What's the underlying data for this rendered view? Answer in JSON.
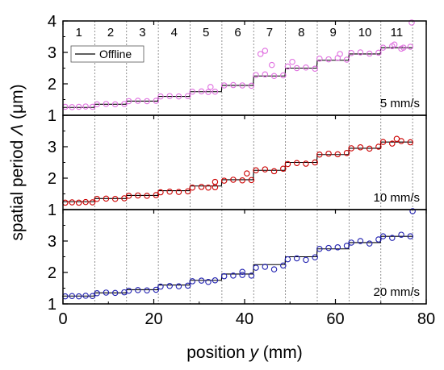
{
  "chart_data": {
    "type": "line+scatter",
    "xlabel_prefix": "position ",
    "xlabel_var": "y",
    "xlabel_suffix": " (mm)",
    "ylabel_prefix": "spatial period ",
    "ylabel_var": "Λ",
    "ylabel_suffix": " (μm)",
    "xlim": [
      0,
      80
    ],
    "ylim": [
      1,
      4
    ],
    "x_ticks": [
      0,
      20,
      40,
      60,
      80
    ],
    "y_ticks_top": [
      1,
      2,
      3,
      4
    ],
    "y_ticks_other": [
      1,
      2,
      3
    ],
    "grid": false,
    "region_boundaries": [
      7,
      14,
      21,
      28,
      35,
      42,
      49,
      56,
      63,
      70,
      77
    ],
    "region_labels": [
      "1",
      "2",
      "3",
      "4",
      "5",
      "6",
      "7",
      "8",
      "9",
      "10",
      "11"
    ],
    "offline_series": {
      "name": "Offline",
      "color": "#000000",
      "x": [
        0,
        6.9,
        7,
        13.9,
        14,
        20.9,
        21,
        27.9,
        28,
        34.9,
        35,
        41.9,
        42,
        48.9,
        49,
        55.9,
        56,
        62.9,
        63,
        69.9,
        70,
        77
      ],
      "y": [
        1.25,
        1.25,
        1.35,
        1.35,
        1.45,
        1.45,
        1.6,
        1.6,
        1.75,
        1.75,
        1.95,
        1.95,
        2.25,
        2.25,
        2.5,
        2.5,
        2.75,
        2.75,
        2.95,
        2.95,
        3.15,
        3.15
      ]
    },
    "panels": [
      {
        "speed_label": "5 mm/s",
        "marker_color": "#e070e0",
        "x": [
          0.5,
          2.0,
          3.5,
          5.0,
          6.5,
          7.5,
          9.5,
          11.5,
          13.5,
          14.5,
          16.5,
          18.5,
          20.5,
          21.5,
          23.5,
          25.5,
          27.5,
          28.5,
          30.5,
          32.0,
          33.5,
          35.5,
          37.5,
          39.5,
          41.5,
          42.5,
          44.5,
          46.5,
          48.5,
          49.5,
          51.5,
          53.5,
          55.5,
          56.5,
          58.5,
          60.5,
          62.5,
          63.5,
          65.5,
          67.5,
          69.5,
          70.5,
          72.5,
          74.5,
          76.5,
          32.5,
          43.5,
          44.5,
          46.0,
          50.5,
          61.0,
          73.0,
          75.0,
          76.8
        ],
        "y": [
          1.27,
          1.26,
          1.27,
          1.28,
          1.27,
          1.35,
          1.36,
          1.35,
          1.36,
          1.45,
          1.46,
          1.45,
          1.46,
          1.6,
          1.61,
          1.6,
          1.61,
          1.75,
          1.76,
          1.74,
          1.75,
          1.95,
          1.96,
          1.95,
          1.94,
          2.28,
          2.3,
          2.25,
          2.27,
          2.55,
          2.5,
          2.52,
          2.48,
          2.8,
          2.78,
          2.82,
          2.77,
          2.98,
          3.0,
          2.96,
          2.99,
          3.15,
          3.2,
          3.12,
          3.18,
          1.9,
          2.95,
          3.05,
          2.6,
          2.7,
          2.95,
          3.25,
          3.15,
          3.95
        ]
      },
      {
        "speed_label": "10 mm/s",
        "marker_color": "#cc0000",
        "x": [
          0.5,
          2.0,
          3.5,
          5.0,
          6.5,
          7.5,
          9.5,
          11.5,
          13.5,
          14.5,
          16.5,
          18.5,
          20.5,
          21.5,
          23.5,
          25.5,
          27.5,
          28.5,
          30.5,
          32.0,
          33.5,
          35.5,
          37.5,
          39.5,
          41.5,
          42.5,
          44.5,
          46.5,
          48.5,
          49.5,
          51.5,
          53.5,
          55.5,
          56.5,
          58.5,
          60.5,
          62.5,
          63.5,
          65.5,
          67.5,
          69.5,
          70.5,
          72.5,
          74.5,
          76.5,
          33.5,
          40.5,
          73.5
        ],
        "y": [
          1.22,
          1.23,
          1.22,
          1.24,
          1.23,
          1.34,
          1.35,
          1.34,
          1.36,
          1.44,
          1.45,
          1.44,
          1.46,
          1.55,
          1.57,
          1.56,
          1.58,
          1.7,
          1.72,
          1.7,
          1.71,
          1.92,
          1.95,
          1.93,
          1.94,
          2.25,
          2.28,
          2.22,
          2.3,
          2.45,
          2.48,
          2.46,
          2.5,
          2.75,
          2.78,
          2.76,
          2.8,
          2.95,
          2.98,
          2.94,
          3.0,
          3.15,
          3.1,
          3.18,
          3.14,
          1.88,
          2.15,
          3.25
        ]
      },
      {
        "speed_label": "20 mm/s",
        "marker_color": "#2020b0",
        "x": [
          0.5,
          2.0,
          3.5,
          5.0,
          6.5,
          7.5,
          9.5,
          11.5,
          13.5,
          14.5,
          16.5,
          18.5,
          20.5,
          21.5,
          23.5,
          25.5,
          27.5,
          28.5,
          30.5,
          32.0,
          33.5,
          35.5,
          37.5,
          39.5,
          41.5,
          42.5,
          44.5,
          46.5,
          48.5,
          49.5,
          51.5,
          53.5,
          55.5,
          56.5,
          58.5,
          60.5,
          62.5,
          63.5,
          65.5,
          67.5,
          69.5,
          70.5,
          72.5,
          74.5,
          76.5,
          39.5,
          77.0
        ],
        "y": [
          1.24,
          1.25,
          1.24,
          1.26,
          1.25,
          1.34,
          1.36,
          1.35,
          1.37,
          1.42,
          1.44,
          1.43,
          1.45,
          1.55,
          1.57,
          1.56,
          1.58,
          1.72,
          1.74,
          1.7,
          1.75,
          1.88,
          1.9,
          1.92,
          1.9,
          2.15,
          2.18,
          2.1,
          2.22,
          2.42,
          2.45,
          2.4,
          2.48,
          2.75,
          2.78,
          2.8,
          2.85,
          2.95,
          3.0,
          2.92,
          3.05,
          3.15,
          3.1,
          3.2,
          3.15,
          2.02,
          3.95
        ]
      }
    ]
  }
}
